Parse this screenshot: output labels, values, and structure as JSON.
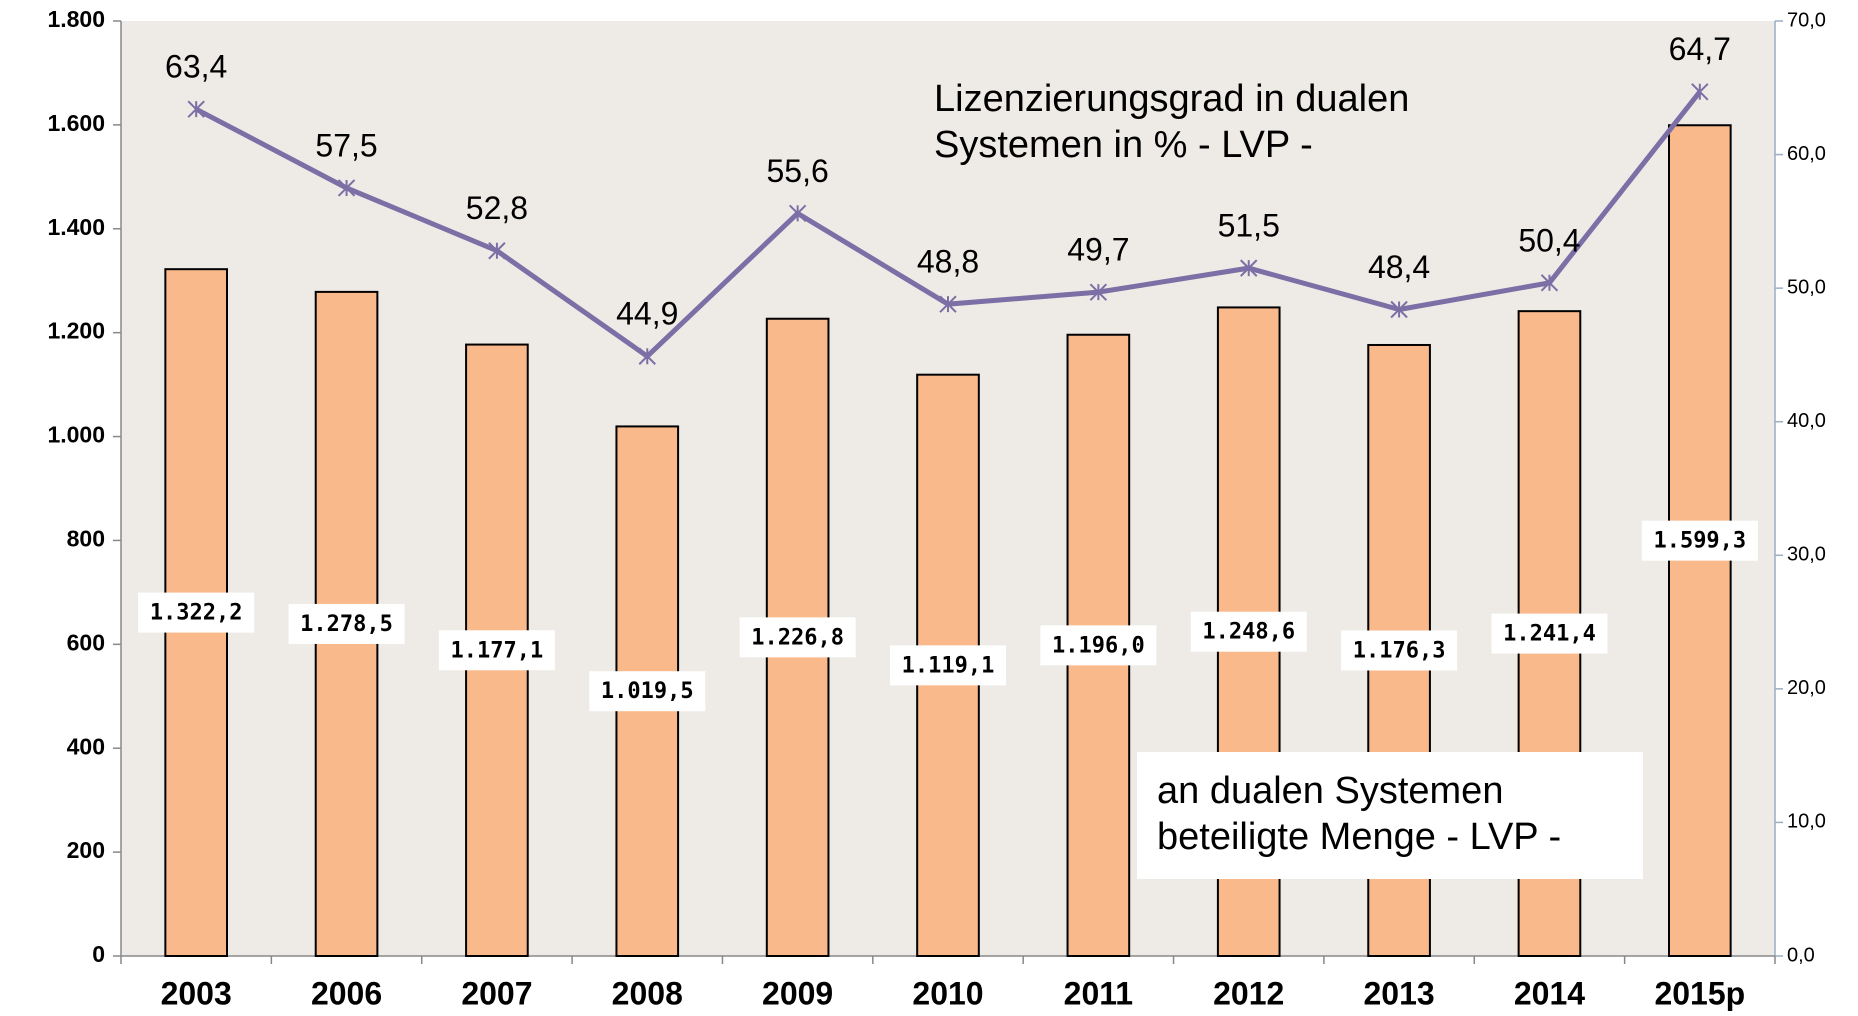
{
  "chart_data": {
    "type": "bar",
    "categories": [
      "2003",
      "2006",
      "2007",
      "2008",
      "2009",
      "2010",
      "2011",
      "2012",
      "2013",
      "2014",
      "2015p"
    ],
    "series": [
      {
        "name": "an dualen Systemen beteiligte Menge - LVP -",
        "type": "bar",
        "color": "#fab98b",
        "values": [
          1322.2,
          1278.5,
          1177.1,
          1019.5,
          1226.8,
          1119.1,
          1196.0,
          1248.6,
          1176.3,
          1241.4,
          1599.3
        ],
        "value_labels": [
          "1.322,2",
          "1.278,5",
          "1.177,1",
          "1.019,5",
          "1.226,8",
          "1.119,1",
          "1.196,0",
          "1.248,6",
          "1.176,3",
          "1.241,4",
          "1.599,3"
        ]
      },
      {
        "name": "Lizenzierungsgrad in dualen Systemen in % - LVP -",
        "type": "line",
        "axis": "y2",
        "color": "#7b6fa5",
        "values": [
          63.4,
          57.5,
          52.8,
          44.9,
          55.6,
          48.8,
          49.7,
          51.5,
          48.4,
          50.4,
          64.7
        ],
        "value_labels": [
          "63,4",
          "57,5",
          "52,8",
          "44,9",
          "55,6",
          "48,8",
          "49,7",
          "51,5",
          "48,4",
          "50,4",
          "64,7"
        ]
      }
    ],
    "ylim": [
      0,
      1800
    ],
    "yticks": [
      0,
      200,
      400,
      600,
      800,
      {
        "value": 1000,
        "label": "1.000"
      },
      {
        "value": 1200,
        "label": "1.200"
      },
      {
        "value": 1400,
        "label": "1.400"
      },
      {
        "value": 1600,
        "label": "1.600"
      },
      {
        "value": 1800,
        "label": "1.800"
      }
    ],
    "y2lim": [
      0,
      70
    ],
    "y2ticks": [
      {
        "value": 0,
        "label": "0,0"
      },
      {
        "value": 10,
        "label": "10,0"
      },
      {
        "value": 20,
        "label": "20,0"
      },
      {
        "value": 30,
        "label": "30,0"
      },
      {
        "value": 40,
        "label": "40,0"
      },
      {
        "value": 50,
        "label": "50,0"
      },
      {
        "value": 60,
        "label": "60,0"
      },
      {
        "value": 70,
        "label": "70,0"
      }
    ],
    "plot_background": "#eeebe7"
  }
}
